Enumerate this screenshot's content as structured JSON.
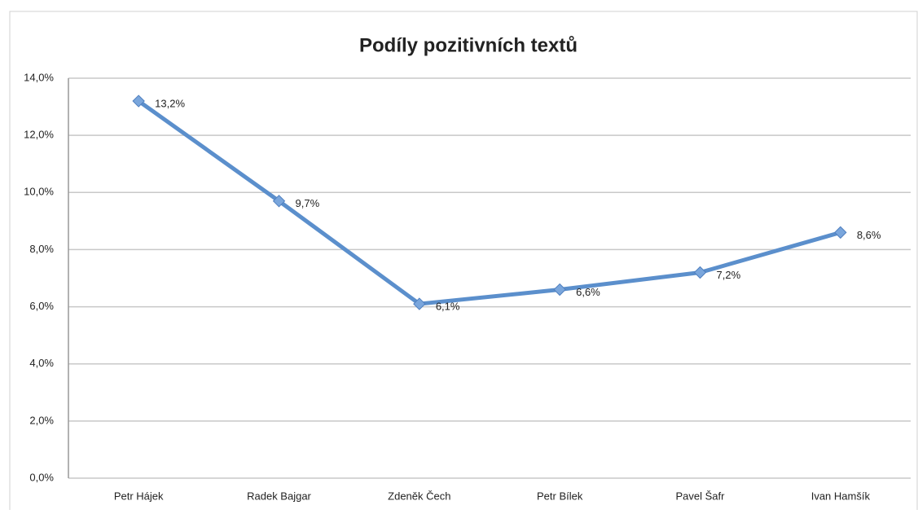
{
  "chart_data": {
    "type": "line",
    "title": "Podíly pozitivních textů",
    "categories": [
      "Petr Hájek",
      "Radek Bajgar",
      "Zdeněk Čech",
      "Petr Bílek",
      "Pavel Šafr",
      "Ivan Hamšík"
    ],
    "values": [
      13.2,
      9.7,
      6.1,
      6.6,
      7.2,
      8.6
    ],
    "value_labels": [
      "13,2%",
      "9,7%",
      "6,1%",
      "6,6%",
      "7,2%",
      "8,6%"
    ],
    "color": "#5b8fcc",
    "ylim": [
      0,
      14
    ],
    "yticks": [
      {
        "value": 0,
        "label": "0,0%"
      },
      {
        "value": 2,
        "label": "2,0%"
      },
      {
        "value": 4,
        "label": "4,0%"
      },
      {
        "value": 6,
        "label": "6,0%"
      },
      {
        "value": 8,
        "label": "8,0%"
      },
      {
        "value": 10,
        "label": "10,0%"
      },
      {
        "value": 12,
        "label": "12,0%"
      },
      {
        "value": 14,
        "label": "14,0%"
      }
    ],
    "grid": true
  }
}
